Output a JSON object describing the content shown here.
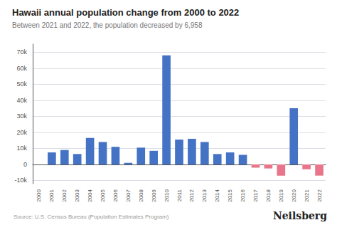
{
  "chart_data": {
    "type": "bar",
    "title": "Hawaii annual population change from 2000 to 2022",
    "subtitle": "Between 2021 and 2022, the population decreased by 6,958",
    "annotations": [
      "Source: U.S. Census Bureau (Population Estimates Program)",
      "Neilsberg"
    ],
    "categories": [
      "2000",
      "2001",
      "2002",
      "2003",
      "2004",
      "2005",
      "2006",
      "2007",
      "2008",
      "2009",
      "2010",
      "2011",
      "2012",
      "2013",
      "2014",
      "2015",
      "2016",
      "2017",
      "2018",
      "2019",
      "2020",
      "2021",
      "2022"
    ],
    "values": [
      0,
      7500,
      9000,
      6500,
      16500,
      14000,
      11000,
      1000,
      10500,
      8500,
      68000,
      15500,
      16000,
      14000,
      6500,
      7500,
      6000,
      -2000,
      -2500,
      -7000,
      35000,
      -3000,
      -6958
    ],
    "colors": [
      "#4472C4",
      "#4472C4",
      "#4472C4",
      "#4472C4",
      "#4472C4",
      "#4472C4",
      "#4472C4",
      "#4472C4",
      "#4472C4",
      "#4472C4",
      "#4472C4",
      "#4472C4",
      "#4472C4",
      "#4472C4",
      "#4472C4",
      "#4472C4",
      "#4472C4",
      "#E8758A",
      "#E8758A",
      "#E8758A",
      "#4472C4",
      "#E8758A",
      "#E8758A"
    ],
    "ylim": [
      -12000,
      75000
    ],
    "yticks": [
      {
        "value": -10000,
        "label": "-10k"
      },
      0,
      {
        "value": 10000,
        "label": "10k"
      },
      {
        "value": 20000,
        "label": "20k"
      },
      {
        "value": 30000,
        "label": "30k"
      },
      {
        "value": 40000,
        "label": "40k"
      },
      {
        "value": 50000,
        "label": "50k"
      },
      {
        "value": 60000,
        "label": "60k"
      },
      {
        "value": 70000,
        "label": "70k"
      }
    ],
    "grid": true
  }
}
